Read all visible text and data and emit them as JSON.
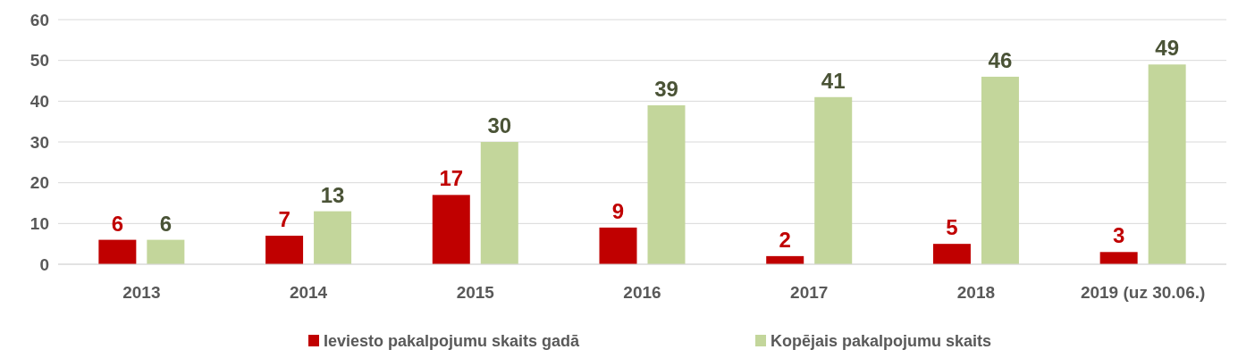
{
  "chart_data": {
    "type": "bar",
    "categories": [
      "2013",
      "2014",
      "2015",
      "2016",
      "2017",
      "2018",
      "2019 (uz 30.06.)"
    ],
    "series": [
      {
        "name": "Ieviesto pakalpojumu skaits gadā",
        "color": "#c00000",
        "values": [
          6,
          7,
          17,
          9,
          2,
          5,
          3
        ]
      },
      {
        "name": "Kopējais pakalpojumu skaits",
        "color": "#c3d69b",
        "values": [
          6,
          13,
          30,
          39,
          41,
          46,
          49
        ]
      }
    ],
    "ylim": [
      0,
      60
    ],
    "yticks": [
      0,
      10,
      20,
      30,
      40,
      50,
      60
    ],
    "grid": "y",
    "legend": "bottom",
    "data_labels": true
  }
}
